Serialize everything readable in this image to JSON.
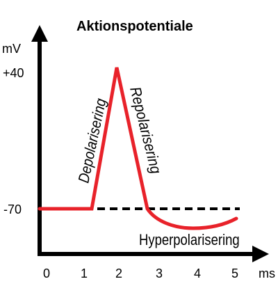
{
  "title": "Aktionspotentiale",
  "axes": {
    "y_unit": "mV",
    "x_unit": "ms",
    "y_ticks": [
      "+40",
      "-70"
    ],
    "x_ticks": [
      "0",
      "1",
      "2",
      "3",
      "4",
      "5"
    ]
  },
  "phases": {
    "depolarization": "Depolarisering",
    "repolarization": "Repolarisering",
    "hyperpolarization": "Hyperpolarisering"
  },
  "colors": {
    "curve": "#e8222a",
    "axis": "#000000",
    "threshold_line": "#000000"
  }
}
